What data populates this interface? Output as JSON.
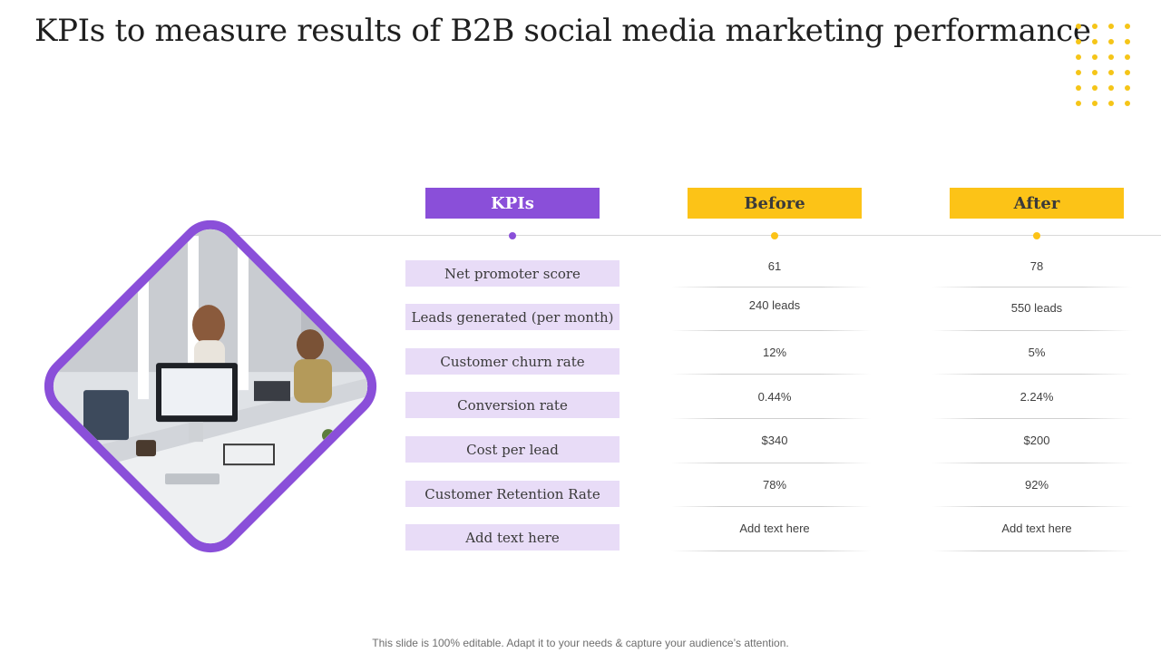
{
  "title": "KPIs to measure results of B2B social media marketing performance",
  "colors": {
    "purple": "#8a4fd9",
    "yellow": "#fcc317",
    "lavender": "#e8dcf7"
  },
  "table": {
    "headers": {
      "kpi": "KPIs",
      "before": "Before",
      "after": "After"
    },
    "rows": [
      {
        "kpi": "Net promoter score",
        "before": "61",
        "after": "78"
      },
      {
        "kpi": "Leads generated (per month)",
        "before": "240 leads",
        "after": "550 leads"
      },
      {
        "kpi": "Customer churn rate",
        "before": "12%",
        "after": "5%"
      },
      {
        "kpi": "Conversion rate",
        "before": "0.44%",
        "after": "2.24%"
      },
      {
        "kpi": "Cost per lead",
        "before": "$340",
        "after": "$200"
      },
      {
        "kpi": "Customer Retention Rate",
        "before": "78%",
        "after": "92%"
      },
      {
        "kpi": "Add text here",
        "before": "Add text here",
        "after": "Add text here"
      }
    ]
  },
  "footer": "This slide is 100% editable. Adapt it to your needs & capture your audience’s attention."
}
